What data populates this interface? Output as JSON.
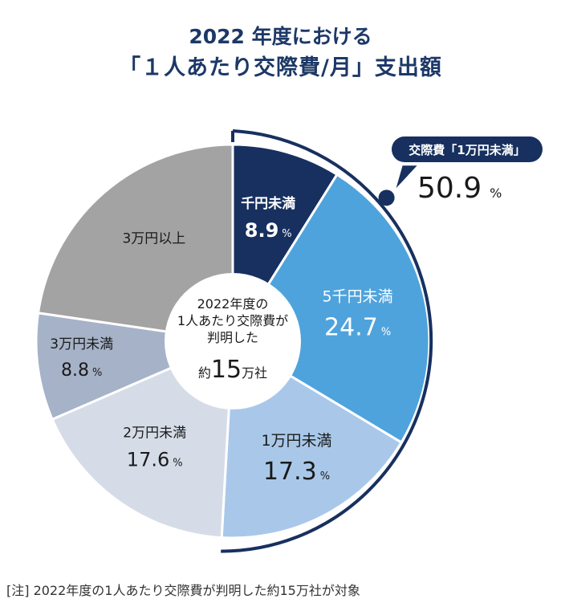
{
  "title": {
    "line1": "2022 年度における",
    "line2": "「１人あたり交際費/月」支出額"
  },
  "chart_data": {
    "type": "pie",
    "variant": "donut",
    "unit": "%",
    "slices": [
      {
        "label": "千円未満",
        "value": 8.9,
        "value_text": "8.9",
        "color": "#17305f",
        "text_color": "#ffffff"
      },
      {
        "label": "5千円未満",
        "value": 24.7,
        "value_text": "24.7",
        "color": "#4fa3dc",
        "text_color": "#ffffff"
      },
      {
        "label": "1万円未満",
        "value": 17.3,
        "value_text": "17.3",
        "color": "#a9c8e9",
        "text_color": "#1a1a1a"
      },
      {
        "label": "2万円未満",
        "value": 17.6,
        "value_text": "17.6",
        "color": "#d5dce7",
        "text_color": "#1a1a1a"
      },
      {
        "label": "3万円未満",
        "value": 8.8,
        "value_text": "8.8",
        "color": "#a6b2c7",
        "text_color": "#1a1a1a"
      },
      {
        "label": "3万円以上",
        "value": 22.7,
        "value_text": "",
        "color": "#a3a3a3",
        "text_color": "#1a1a1a"
      }
    ],
    "center": {
      "line1": "2022年度の",
      "line2": "1人あたり交際費が",
      "line3": "判明した",
      "prefix": "約",
      "number": "15",
      "suffix": "万社"
    },
    "callout": {
      "label": "交際費「1万円未満」",
      "value": "50.9",
      "unit": "%",
      "color": "#17305f"
    }
  },
  "footnote": "[注] 2022年度の1人あたり交際費が判明した約15万社が対象"
}
